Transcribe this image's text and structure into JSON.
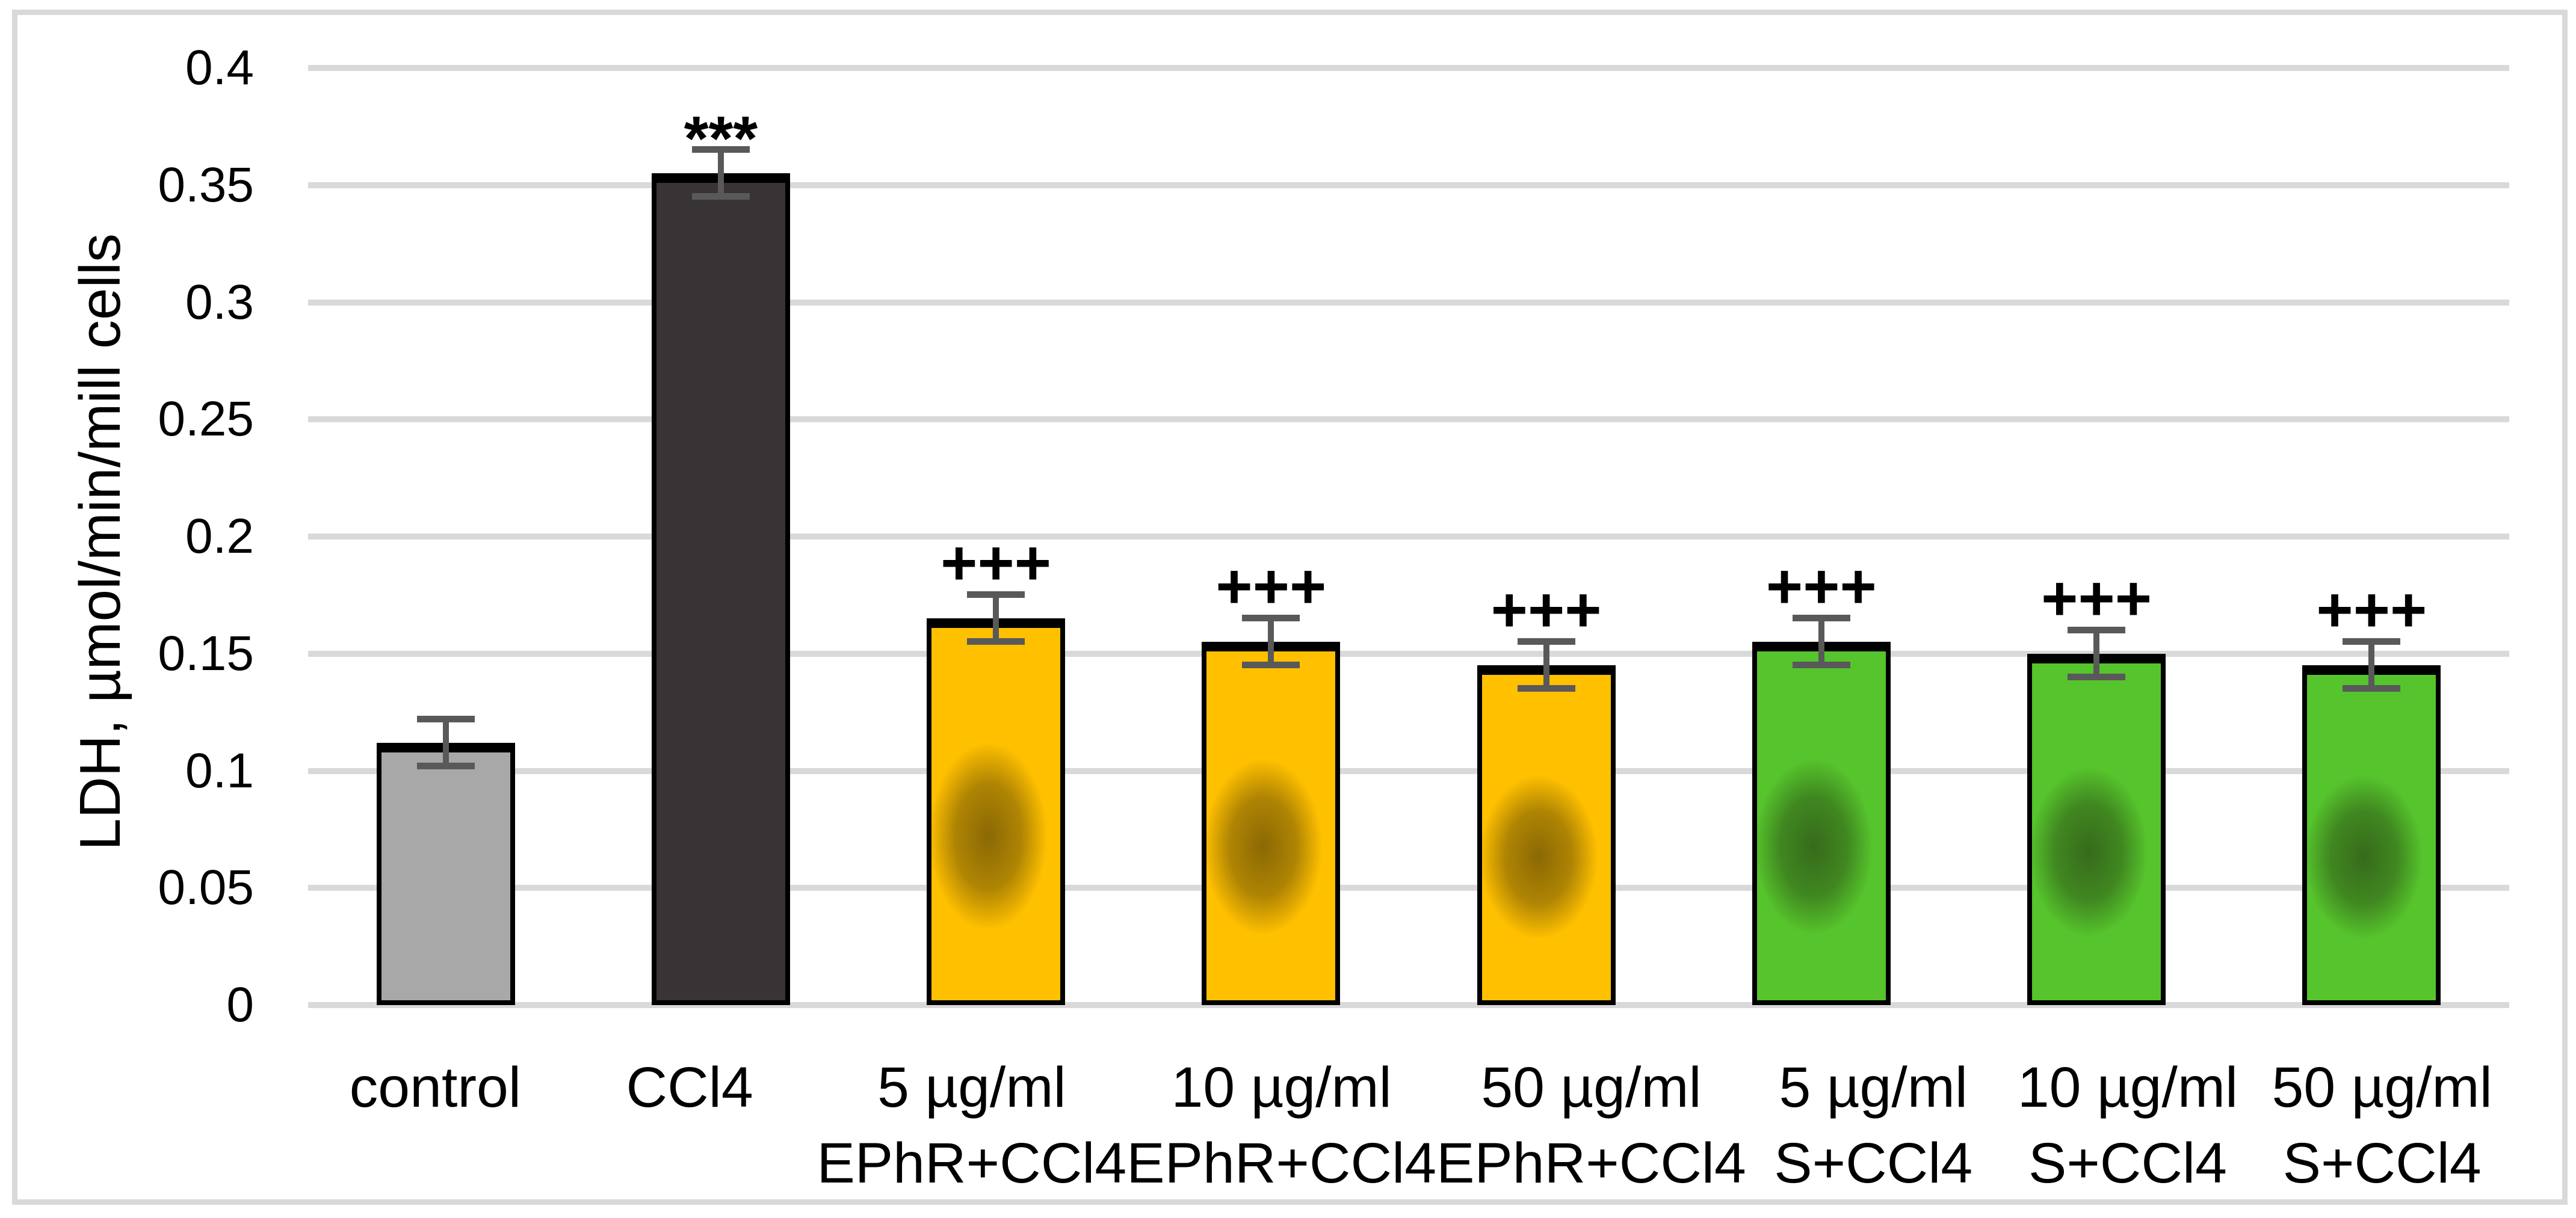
{
  "chart_data": {
    "type": "bar",
    "title": "",
    "ylabel": "LDH, µmol/min/mill cells",
    "xlabel": "",
    "ylim": [
      0,
      0.4
    ],
    "ytick_step": 0.05,
    "yticks": [
      "0.4",
      "0.35",
      "0.3",
      "0.25",
      "0.2",
      "0.15",
      "0.1",
      "0.05",
      "0"
    ],
    "grid": true,
    "legend": "none",
    "categories": [
      "control",
      "CCl4",
      "5 µg/ml EPhR+CCl4",
      "10 µg/ml EPhR+CCl4",
      "50 µg/ml EPhR+CCl4",
      "5 µg/ml S+CCl4",
      "10 µg/ml S+CCl4",
      "50 µg/ml S+CCl4"
    ],
    "bars": [
      {
        "label_lines": [
          "control"
        ],
        "value": 0.112,
        "error": 0.01,
        "annotation": "",
        "fill": "#A8A8A8",
        "smudge": false
      },
      {
        "label_lines": [
          "CCl4"
        ],
        "value": 0.355,
        "error": 0.01,
        "annotation": "***",
        "fill": "#383334",
        "smudge": false
      },
      {
        "label_lines": [
          "5 µg/ml",
          "EPhR+CCl4"
        ],
        "value": 0.165,
        "error": 0.01,
        "annotation": "+++",
        "fill": "#FFC000",
        "smudge": true
      },
      {
        "label_lines": [
          "10 µg/ml",
          "EPhR+CCl4"
        ],
        "value": 0.155,
        "error": 0.01,
        "annotation": "+++",
        "fill": "#FFC000",
        "smudge": true
      },
      {
        "label_lines": [
          "50 µg/ml",
          "EPhR+CCl4"
        ],
        "value": 0.145,
        "error": 0.01,
        "annotation": "+++",
        "fill": "#FFC000",
        "smudge": true
      },
      {
        "label_lines": [
          "5 µg/ml",
          "S+CCl4"
        ],
        "value": 0.155,
        "error": 0.01,
        "annotation": "+++",
        "fill": "#56C42C",
        "smudge": true
      },
      {
        "label_lines": [
          "10 µg/ml",
          "S+CCl4"
        ],
        "value": 0.15,
        "error": 0.01,
        "annotation": "+++",
        "fill": "#56C42C",
        "smudge": true
      },
      {
        "label_lines": [
          "50 µg/ml",
          "S+CCl4"
        ],
        "value": 0.145,
        "error": 0.01,
        "annotation": "+++",
        "fill": "#56C42C",
        "smudge": true
      }
    ],
    "colors": {
      "grid": "#D9D9D9",
      "frame": "#D9D9D9",
      "error_bar": "#595959",
      "bar_outline": "#000000",
      "text": "#000000",
      "background": "#FFFFFF"
    }
  }
}
